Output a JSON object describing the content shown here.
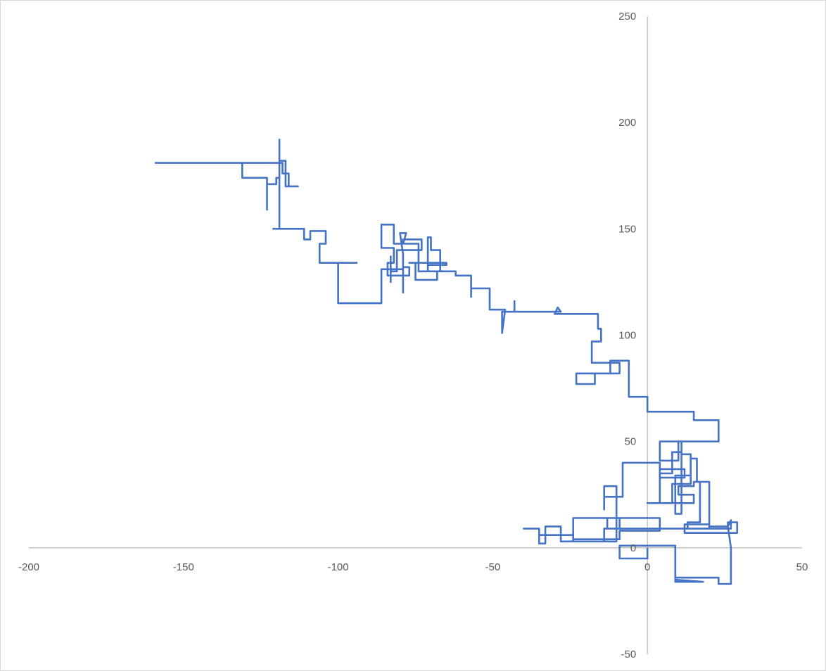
{
  "chart_data": {
    "type": "line",
    "title": "",
    "xlabel": "",
    "ylabel": "",
    "xlim": [
      -200,
      50
    ],
    "ylim": [
      -50,
      250
    ],
    "x_ticks": [
      -200,
      -150,
      -100,
      -50,
      0,
      50
    ],
    "y_ticks": [
      -50,
      0,
      50,
      100,
      150,
      200,
      250
    ],
    "x_tick_labels": [
      "-200",
      "-150",
      "-100",
      "-50",
      "0",
      "50"
    ],
    "y_tick_labels": [
      "-50",
      "0",
      "50",
      "100",
      "150",
      "200",
      "250"
    ],
    "grid": false,
    "legend": "none",
    "line_color": "#4472c4",
    "axis_color": "#bfbfbf",
    "series": [
      {
        "points": [
          [
            0,
            0
          ],
          [
            0,
            -5
          ],
          [
            -9,
            -5
          ],
          [
            -9,
            1
          ],
          [
            0,
            1
          ],
          [
            9,
            1
          ],
          [
            9,
            -16
          ],
          [
            18,
            -16
          ],
          [
            9,
            -15
          ],
          [
            9,
            -14
          ],
          [
            23,
            -14
          ],
          [
            23,
            -17
          ],
          [
            27,
            -17
          ],
          [
            27,
            -9
          ],
          [
            27,
            0
          ],
          [
            26,
            10
          ],
          [
            27,
            13
          ],
          [
            27,
            9
          ],
          [
            0,
            9
          ],
          [
            -13,
            9
          ],
          [
            -13,
            14
          ],
          [
            0,
            14
          ],
          [
            4,
            14
          ],
          [
            4,
            8
          ],
          [
            -9,
            8
          ],
          [
            -9,
            4
          ],
          [
            -24,
            4
          ],
          [
            -24,
            14
          ],
          [
            -9,
            14
          ],
          [
            -9,
            9
          ],
          [
            -14,
            9
          ],
          [
            -14,
            3
          ],
          [
            -28,
            3
          ],
          [
            -28,
            10
          ],
          [
            -33,
            10
          ],
          [
            -33,
            2
          ],
          [
            -35,
            2
          ],
          [
            -35,
            9
          ],
          [
            -40,
            9
          ],
          [
            -35,
            9
          ],
          [
            -35,
            7
          ],
          [
            -35,
            6
          ],
          [
            -24,
            6
          ],
          [
            -24,
            3
          ],
          [
            -10,
            3
          ],
          [
            -10,
            29
          ],
          [
            -14,
            29
          ],
          [
            -14,
            18
          ],
          [
            -14,
            24
          ],
          [
            -8,
            24
          ],
          [
            -8,
            40
          ],
          [
            4,
            40
          ],
          [
            4,
            21
          ],
          [
            0,
            21
          ],
          [
            10,
            21
          ],
          [
            4,
            21
          ],
          [
            4,
            33
          ],
          [
            12,
            33
          ],
          [
            12,
            37
          ],
          [
            4,
            37
          ],
          [
            4,
            35
          ],
          [
            8,
            35
          ],
          [
            8,
            45
          ],
          [
            11,
            45
          ],
          [
            11,
            16
          ],
          [
            9,
            16
          ],
          [
            9,
            34
          ],
          [
            14,
            34
          ],
          [
            14,
            42
          ],
          [
            16,
            42
          ],
          [
            16,
            31
          ],
          [
            20,
            31
          ],
          [
            20,
            10
          ],
          [
            26,
            10
          ],
          [
            26,
            12
          ],
          [
            29,
            12
          ],
          [
            29,
            7
          ],
          [
            12,
            7
          ],
          [
            12,
            11
          ],
          [
            20,
            11
          ],
          [
            20,
            9
          ],
          [
            13,
            9
          ],
          [
            13,
            12
          ],
          [
            17,
            12
          ],
          [
            17,
            31
          ],
          [
            15,
            31
          ],
          [
            15,
            29
          ],
          [
            10,
            29
          ],
          [
            10,
            25
          ],
          [
            15,
            25
          ],
          [
            15,
            21
          ],
          [
            8,
            21
          ],
          [
            8,
            26
          ],
          [
            8,
            30
          ],
          [
            14,
            30
          ],
          [
            14,
            44
          ],
          [
            11,
            44
          ],
          [
            11,
            50
          ],
          [
            4,
            50
          ],
          [
            4,
            41
          ],
          [
            10,
            41
          ],
          [
            10,
            50
          ],
          [
            23,
            50
          ],
          [
            23,
            60
          ],
          [
            15,
            60
          ],
          [
            15,
            64
          ],
          [
            0,
            64
          ],
          [
            0,
            71
          ],
          [
            -6,
            71
          ],
          [
            -6,
            88
          ],
          [
            -12,
            88
          ],
          [
            -12,
            82
          ],
          [
            -17,
            82
          ],
          [
            -17,
            77
          ],
          [
            -23,
            77
          ],
          [
            -23,
            82
          ],
          [
            -9,
            82
          ],
          [
            -9,
            87
          ],
          [
            -18,
            87
          ],
          [
            -18,
            97
          ],
          [
            -15,
            97
          ],
          [
            -15,
            103
          ],
          [
            -16,
            103
          ],
          [
            -16,
            110
          ],
          [
            -25,
            110
          ],
          [
            -30,
            110
          ],
          [
            -29,
            113
          ],
          [
            -28,
            111
          ],
          [
            -43,
            111
          ],
          [
            -43,
            116
          ],
          [
            -43,
            111
          ],
          [
            -47,
            111
          ],
          [
            -47,
            107
          ],
          [
            -47,
            101
          ],
          [
            -46,
            112
          ],
          [
            -51,
            112
          ],
          [
            -51,
            122
          ],
          [
            -57,
            122
          ],
          [
            -57,
            118
          ],
          [
            -57,
            128
          ],
          [
            -62,
            128
          ],
          [
            -62,
            130
          ],
          [
            -68,
            130
          ],
          [
            -68,
            126
          ],
          [
            -75,
            126
          ],
          [
            -75,
            134
          ],
          [
            -77,
            134
          ],
          [
            -65,
            134
          ],
          [
            -65,
            133
          ],
          [
            -71,
            133
          ],
          [
            -71,
            130
          ],
          [
            -67,
            130
          ],
          [
            -67,
            140
          ],
          [
            -70,
            140
          ],
          [
            -70,
            146
          ],
          [
            -71,
            146
          ],
          [
            -71,
            130
          ],
          [
            -74,
            130
          ],
          [
            -74,
            143
          ],
          [
            -79,
            143
          ],
          [
            -79,
            145
          ],
          [
            -73,
            145
          ],
          [
            -73,
            140
          ],
          [
            -81,
            140
          ],
          [
            -81,
            130
          ],
          [
            -83,
            130
          ],
          [
            -83,
            125
          ],
          [
            -83,
            131
          ],
          [
            -83,
            137
          ],
          [
            -83,
            128
          ],
          [
            -77,
            128
          ],
          [
            -77,
            130
          ],
          [
            -77,
            132
          ],
          [
            -79,
            132
          ],
          [
            -79,
            120
          ],
          [
            -79,
            128
          ],
          [
            -84,
            128
          ],
          [
            -84,
            134
          ],
          [
            -82,
            134
          ],
          [
            -82,
            141
          ],
          [
            -86,
            141
          ],
          [
            -86,
            152
          ],
          [
            -82,
            152
          ],
          [
            -82,
            143
          ],
          [
            -79,
            143
          ],
          [
            -78,
            148
          ],
          [
            -80,
            148
          ],
          [
            -79,
            138
          ],
          [
            -79,
            131
          ],
          [
            -86,
            131
          ],
          [
            -86,
            124
          ],
          [
            -86,
            121
          ],
          [
            -86,
            118
          ],
          [
            -86,
            115
          ],
          [
            -100,
            115
          ],
          [
            -100,
            134
          ],
          [
            -94,
            134
          ],
          [
            -106,
            134
          ],
          [
            -106,
            143
          ],
          [
            -104,
            143
          ],
          [
            -104,
            149
          ],
          [
            -109,
            149
          ],
          [
            -109,
            145
          ],
          [
            -111,
            145
          ],
          [
            -111,
            150
          ],
          [
            -119,
            150
          ],
          [
            -121,
            150
          ],
          [
            -112,
            150
          ],
          [
            -119,
            150
          ],
          [
            -119,
            157
          ],
          [
            -119,
            174
          ],
          [
            -120,
            174
          ],
          [
            -120,
            171
          ],
          [
            -123,
            171
          ],
          [
            -123,
            159
          ],
          [
            -123,
            174
          ],
          [
            -131,
            174
          ],
          [
            -131,
            181
          ],
          [
            -159,
            181
          ],
          [
            -118,
            181
          ],
          [
            -118,
            176
          ],
          [
            -116,
            176
          ],
          [
            -116,
            170
          ],
          [
            -117,
            170
          ],
          [
            -113,
            170
          ],
          [
            -117,
            170
          ],
          [
            -117,
            182
          ],
          [
            -119,
            182
          ],
          [
            -119,
            192
          ],
          [
            -119,
            174
          ]
        ]
      }
    ]
  }
}
